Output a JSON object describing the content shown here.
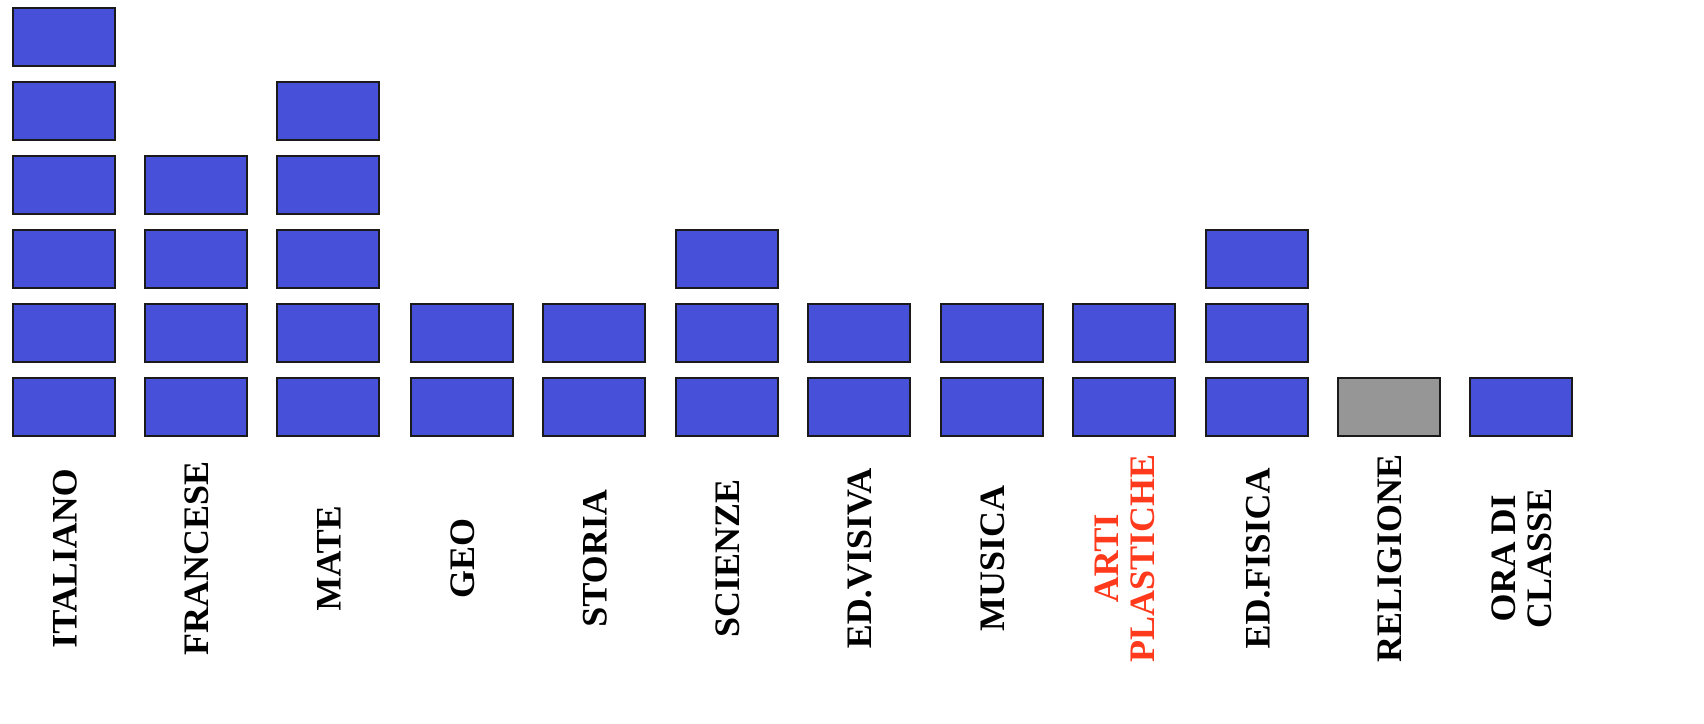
{
  "chart_data": {
    "type": "bar",
    "categories": [
      "ITALIANO",
      "FRANCESE",
      "MATE",
      "GEO",
      "STORIA",
      "SCIENZE",
      "ED.VISIVA",
      "MUSICA",
      "ARTI\nPLASTICHE",
      "ED.FISICA",
      "RELIGIONE",
      "ORA DI\nCLASSE"
    ],
    "values": [
      6,
      4,
      5,
      2,
      2,
      3,
      2,
      2,
      2,
      3,
      1,
      1
    ],
    "ylim": [
      0,
      6
    ],
    "grid": false,
    "legend": "none"
  },
  "colors": {
    "block": "#4650d8",
    "block_highlight": "#969696",
    "label": "#000000",
    "label_highlight": "#ff3a1c"
  },
  "highlight_block_category": "RELIGIONE",
  "highlight_label_category": "ARTI\nPLASTICHE"
}
